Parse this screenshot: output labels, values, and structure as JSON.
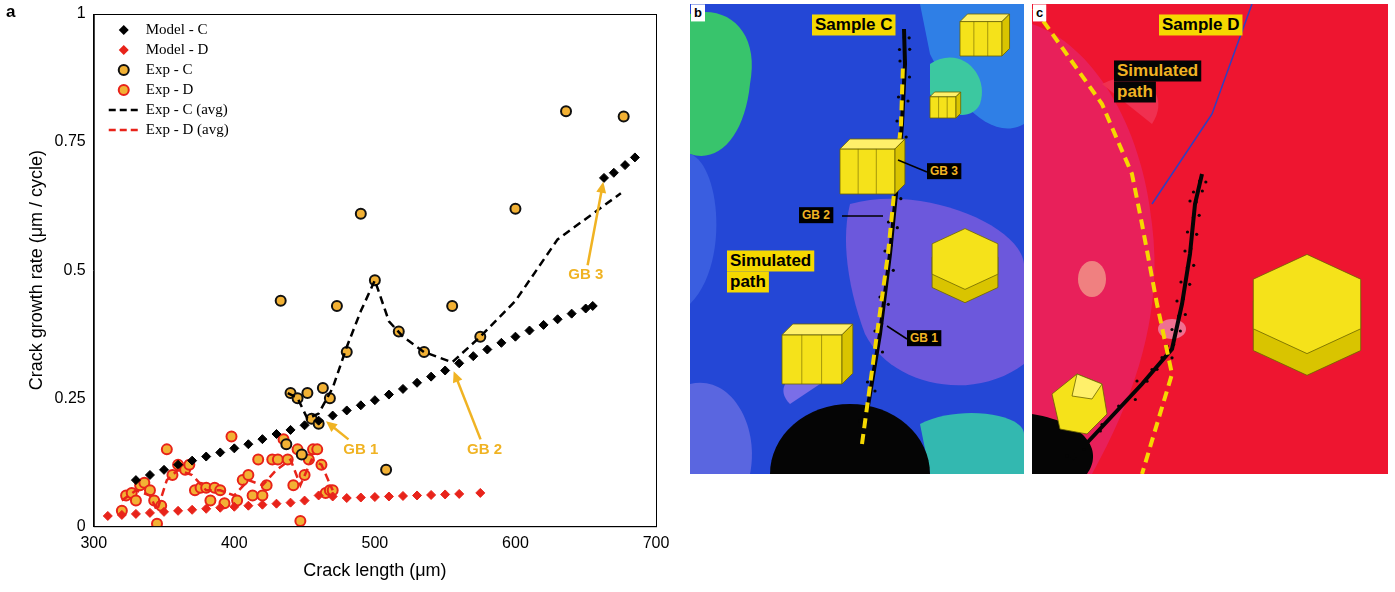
{
  "chart_data": {
    "type": "scatter",
    "panel": "a",
    "xlabel": "Crack length (μm)",
    "ylabel": "Crack growth rate (μm / cycle)",
    "xlim": [
      300,
      700
    ],
    "xticks": [
      300,
      400,
      500,
      600,
      700
    ],
    "ylim": [
      0,
      1
    ],
    "yticks": [
      0,
      0.25,
      0.5,
      0.75,
      1
    ],
    "grid": false,
    "legend": "upper left",
    "series": [
      {
        "name": "Model - C",
        "color": "#000000",
        "marker": "diamond",
        "x": [
          330,
          340,
          350,
          360,
          370,
          380,
          390,
          400,
          410,
          420,
          430,
          440,
          450,
          460,
          470,
          480,
          490,
          500,
          510,
          520,
          530,
          540,
          550,
          560,
          570,
          580,
          590,
          600,
          610,
          620,
          630,
          640,
          650,
          655,
          663,
          670,
          678,
          685
        ],
        "values": [
          0.09,
          0.1,
          0.11,
          0.12,
          0.128,
          0.136,
          0.144,
          0.152,
          0.16,
          0.17,
          0.18,
          0.188,
          0.197,
          0.206,
          0.216,
          0.226,
          0.236,
          0.246,
          0.257,
          0.268,
          0.28,
          0.292,
          0.304,
          0.318,
          0.332,
          0.345,
          0.358,
          0.37,
          0.382,
          0.393,
          0.404,
          0.415,
          0.425,
          0.43,
          0.68,
          0.69,
          0.705,
          0.72
        ]
      },
      {
        "name": "Model - D",
        "color": "#e8231a",
        "marker": "diamond",
        "x": [
          310,
          320,
          330,
          340,
          350,
          360,
          370,
          380,
          390,
          400,
          410,
          420,
          430,
          440,
          450,
          460,
          470,
          480,
          490,
          500,
          510,
          520,
          530,
          540,
          550,
          560,
          575
        ],
        "values": [
          0.02,
          0.022,
          0.024,
          0.026,
          0.028,
          0.03,
          0.032,
          0.034,
          0.036,
          0.038,
          0.04,
          0.042,
          0.044,
          0.046,
          0.05,
          0.06,
          0.058,
          0.055,
          0.056,
          0.057,
          0.058,
          0.059,
          0.06,
          0.061,
          0.062,
          0.063,
          0.065
        ]
      },
      {
        "name": "Exp - C",
        "color": "#111111",
        "marker": "circle",
        "x": [
          433,
          437,
          440,
          445,
          448,
          452,
          455,
          460,
          463,
          468,
          473,
          480,
          490,
          500,
          508,
          517,
          535,
          555,
          575,
          600,
          636,
          677
        ],
        "values": [
          0.44,
          0.16,
          0.26,
          0.25,
          0.14,
          0.26,
          0.21,
          0.2,
          0.27,
          0.25,
          0.43,
          0.34,
          0.61,
          0.48,
          0.11,
          0.38,
          0.34,
          0.43,
          0.37,
          0.62,
          0.81,
          0.8
        ]
      },
      {
        "name": "Exp - D",
        "color": "#e8231a",
        "marker": "circle",
        "x": [
          320,
          323,
          327,
          330,
          333,
          336,
          340,
          343,
          345,
          348,
          352,
          356,
          360,
          365,
          368,
          372,
          376,
          380,
          383,
          386,
          390,
          393,
          398,
          402,
          406,
          410,
          413,
          417,
          420,
          423,
          427,
          431,
          435,
          438,
          442,
          445,
          447,
          450,
          453,
          456,
          459,
          462,
          465,
          468,
          470
        ],
        "values": [
          0.03,
          0.06,
          0.065,
          0.05,
          0.08,
          0.085,
          0.07,
          0.05,
          0.005,
          0.04,
          0.15,
          0.1,
          0.12,
          0.11,
          0.12,
          0.07,
          0.075,
          0.075,
          0.05,
          0.075,
          0.07,
          0.045,
          0.175,
          0.05,
          0.09,
          0.1,
          0.06,
          0.13,
          0.06,
          0.08,
          0.13,
          0.13,
          0.17,
          0.13,
          0.08,
          0.15,
          0.01,
          0.1,
          0.13,
          0.15,
          0.15,
          0.12,
          0.065,
          0.07,
          0.07
        ]
      },
      {
        "name": "Exp - C (avg)",
        "color": "#000000",
        "line_style": "dashed",
        "x": [
          438,
          445,
          452,
          460,
          470,
          480,
          490,
          500,
          510,
          520,
          535,
          555,
          575,
          600,
          630,
          655,
          675
        ],
        "values": [
          0.26,
          0.25,
          0.21,
          0.22,
          0.27,
          0.35,
          0.42,
          0.48,
          0.4,
          0.37,
          0.34,
          0.32,
          0.37,
          0.44,
          0.56,
          0.61,
          0.65
        ]
      },
      {
        "name": "Exp - D (avg)",
        "color": "#e8231a",
        "line_style": "dashed",
        "x": [
          320,
          330,
          340,
          345,
          352,
          360,
          370,
          380,
          390,
          400,
          410,
          420,
          430,
          440,
          447,
          455,
          462,
          470
        ],
        "values": [
          0.05,
          0.07,
          0.06,
          0.03,
          0.09,
          0.11,
          0.1,
          0.07,
          0.07,
          0.06,
          0.09,
          0.08,
          0.11,
          0.13,
          0.08,
          0.13,
          0.12,
          0.07
        ]
      }
    ],
    "annotations": [
      {
        "text": "GB 1",
        "x": 463,
        "y": 0.21,
        "text_x": 490,
        "text_y": 0.15
      },
      {
        "text": "GB 2",
        "x": 555,
        "y": 0.31,
        "text_x": 578,
        "text_y": 0.15
      },
      {
        "text": "GB 3",
        "x": 663,
        "y": 0.68,
        "text_x": 650,
        "text_y": 0.49
      }
    ]
  },
  "panels": [
    {
      "letter": "b",
      "title": "Sample C",
      "path_label": "Simulated path",
      "grain_boundaries": [
        "GB 1",
        "GB 2",
        "GB 3"
      ]
    },
    {
      "letter": "c",
      "title": "Sample D",
      "path_label": "Simulated path"
    }
  ]
}
